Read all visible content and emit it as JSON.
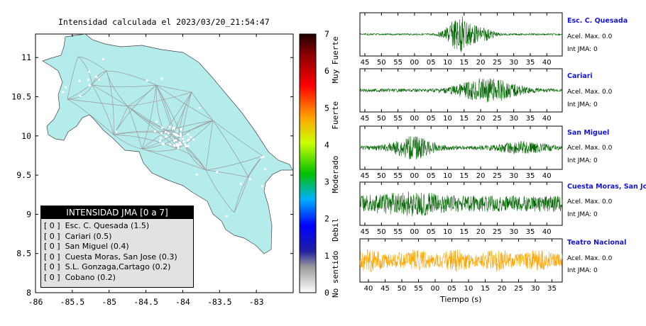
{
  "map": {
    "title": "Intensidad calculada el 2023/03/20_21:54:47",
    "x_ticks": [
      "-86",
      "-85.5",
      "-85",
      "-84.5",
      "-84",
      "-83.5",
      "-83"
    ],
    "y_ticks": [
      "11",
      "10.5",
      "10",
      "9.5",
      "9",
      "8.5",
      "8"
    ],
    "xlim": [
      -86,
      -82.5
    ],
    "ylim": [
      8,
      11.3
    ],
    "land_color": "#b4ecec"
  },
  "legend": {
    "title": "INTENSIDAD JMA [0 a 7]",
    "rows": [
      "[ 0 ]  Esc. C. Quesada (1.5)",
      "[ 0 ]  Cariari (0.5)",
      "[ 0 ]  San Miguel (0.4)",
      "[ 0 ]  Cuesta Moras, San Jose (0.3)",
      "[ 0 ]  S.L. Gonzaga,Cartago (0.2)",
      "[ 0 ]  Cobano (0.2)"
    ]
  },
  "colorbar": {
    "ticks": [
      "0",
      "1",
      "2",
      "3",
      "4",
      "5",
      "6",
      "7"
    ],
    "categories": [
      "No sentido",
      "Debil",
      "Moderado",
      "Fuerte",
      "Muy Fuerte"
    ]
  },
  "waveforms": {
    "xlabel": "Tiempo (s)",
    "green": "#006400",
    "orange": "#ffa500",
    "stations": [
      {
        "name": "Esc. C. Quesada",
        "acel": "Acel. Max. 0.0",
        "int": "Int JMA: 0",
        "ticks": [
          "45",
          "50",
          "55",
          "00",
          "05",
          "10",
          "15",
          "20",
          "25",
          "30",
          "35",
          "40"
        ]
      },
      {
        "name": "Cariari",
        "acel": "Acel. Max. 0.0",
        "int": "Int JMA: 0",
        "ticks": [
          "45",
          "50",
          "55",
          "00",
          "05",
          "10",
          "15",
          "20",
          "25",
          "30",
          "35",
          "40"
        ]
      },
      {
        "name": "San Miguel",
        "acel": "Acel. Max. 0.0",
        "int": "Int JMA: 0",
        "ticks": [
          "45",
          "50",
          "55",
          "00",
          "05",
          "10",
          "15",
          "20",
          "25",
          "30",
          "35",
          "40"
        ]
      },
      {
        "name": "Cuesta Moras, San Jose",
        "acel": "Acel. Max. 0.0",
        "int": "Int JMA: 0",
        "ticks": [
          "45",
          "50",
          "55",
          "00",
          "05",
          "10",
          "15",
          "20",
          "25",
          "30",
          "35",
          "40"
        ]
      },
      {
        "name": "Teatro Nacional",
        "acel": "Acel. Max. 0.0",
        "int": "Int JMA: 0",
        "ticks": [
          "40",
          "45",
          "50",
          "55",
          "00",
          "05",
          "10",
          "15",
          "20",
          "25",
          "30",
          "35"
        ]
      }
    ]
  },
  "chart_data": [
    {
      "type": "heatmap",
      "title": "Intensidad calculada el 2023/03/20_21:54:47",
      "xlabel": "",
      "ylabel": "",
      "xlim": [
        -86,
        -82.5
      ],
      "ylim": [
        8,
        11.3
      ],
      "colorbar": {
        "range": [
          0,
          7
        ],
        "labels": [
          "No sentido",
          "Debil",
          "Moderado",
          "Fuerte",
          "Muy Fuerte"
        ]
      },
      "legend": [
        "Esc. C. Quesada (1.5)",
        "Cariari (0.5)",
        "San Miguel (0.4)",
        "Cuesta Moras, San Jose (0.3)",
        "S.L. Gonzaga,Cartago (0.2)",
        "Cobano (0.2)"
      ]
    },
    {
      "type": "line",
      "xlabel": "Tiempo (s)",
      "series": [
        {
          "name": "Esc. C. Quesada",
          "peak_window": [
            8,
            20
          ]
        },
        {
          "name": "Cariari",
          "peak_window": [
            5,
            35
          ]
        },
        {
          "name": "San Miguel",
          "peak_window": [
            55,
            30
          ]
        },
        {
          "name": "Cuesta Moras, San Jose",
          "peak_window": [
            45,
            40
          ]
        },
        {
          "name": "Teatro Nacional",
          "peak_window": [
            40,
            35
          ]
        }
      ]
    }
  ]
}
